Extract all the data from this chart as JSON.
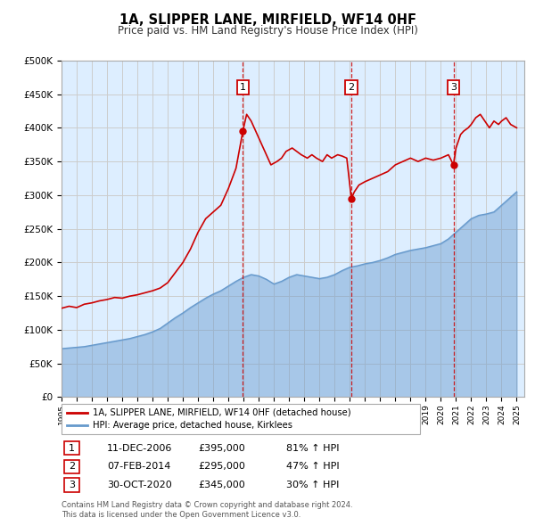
{
  "title": "1A, SLIPPER LANE, MIRFIELD, WF14 0HF",
  "subtitle": "Price paid vs. HM Land Registry's House Price Index (HPI)",
  "red_label": "1A, SLIPPER LANE, MIRFIELD, WF14 0HF (detached house)",
  "blue_label": "HPI: Average price, detached house, Kirklees",
  "red_color": "#cc0000",
  "blue_color": "#6699cc",
  "fill_color": "#ddeeff",
  "background_color": "#ffffff",
  "grid_color": "#cccccc",
  "ylim": [
    0,
    500000
  ],
  "yticks": [
    0,
    50000,
    100000,
    150000,
    200000,
    250000,
    300000,
    350000,
    400000,
    450000,
    500000
  ],
  "xlim_start": 1995.0,
  "xlim_end": 2025.5,
  "transactions": [
    {
      "num": 1,
      "date": "11-DEC-2006",
      "price": 395000,
      "pct": "81%",
      "year": 2006.95
    },
    {
      "num": 2,
      "date": "07-FEB-2014",
      "price": 295000,
      "pct": "47%",
      "year": 2014.1
    },
    {
      "num": 3,
      "date": "30-OCT-2020",
      "price": 345000,
      "pct": "30%",
      "year": 2020.83
    }
  ],
  "footnote": "Contains HM Land Registry data © Crown copyright and database right 2024.\nThis data is licensed under the Open Government Licence v3.0.",
  "red_data": [
    [
      1995.0,
      132000
    ],
    [
      1995.5,
      135000
    ],
    [
      1996.0,
      133000
    ],
    [
      1996.5,
      138000
    ],
    [
      1997.0,
      140000
    ],
    [
      1997.5,
      143000
    ],
    [
      1998.0,
      145000
    ],
    [
      1998.5,
      148000
    ],
    [
      1999.0,
      147000
    ],
    [
      1999.5,
      150000
    ],
    [
      2000.0,
      152000
    ],
    [
      2000.5,
      155000
    ],
    [
      2001.0,
      158000
    ],
    [
      2001.5,
      162000
    ],
    [
      2002.0,
      170000
    ],
    [
      2002.5,
      185000
    ],
    [
      2003.0,
      200000
    ],
    [
      2003.5,
      220000
    ],
    [
      2004.0,
      245000
    ],
    [
      2004.5,
      265000
    ],
    [
      2005.0,
      275000
    ],
    [
      2005.5,
      285000
    ],
    [
      2006.0,
      310000
    ],
    [
      2006.5,
      340000
    ],
    [
      2006.95,
      395000
    ],
    [
      2007.2,
      420000
    ],
    [
      2007.5,
      410000
    ],
    [
      2007.8,
      395000
    ],
    [
      2008.2,
      375000
    ],
    [
      2008.5,
      360000
    ],
    [
      2008.8,
      345000
    ],
    [
      2009.2,
      350000
    ],
    [
      2009.5,
      355000
    ],
    [
      2009.8,
      365000
    ],
    [
      2010.2,
      370000
    ],
    [
      2010.5,
      365000
    ],
    [
      2010.8,
      360000
    ],
    [
      2011.2,
      355000
    ],
    [
      2011.5,
      360000
    ],
    [
      2011.8,
      355000
    ],
    [
      2012.2,
      350000
    ],
    [
      2012.5,
      360000
    ],
    [
      2012.8,
      355000
    ],
    [
      2013.2,
      360000
    ],
    [
      2013.5,
      358000
    ],
    [
      2013.8,
      355000
    ],
    [
      2014.1,
      295000
    ],
    [
      2014.3,
      305000
    ],
    [
      2014.6,
      315000
    ],
    [
      2015.0,
      320000
    ],
    [
      2015.5,
      325000
    ],
    [
      2016.0,
      330000
    ],
    [
      2016.5,
      335000
    ],
    [
      2017.0,
      345000
    ],
    [
      2017.5,
      350000
    ],
    [
      2018.0,
      355000
    ],
    [
      2018.5,
      350000
    ],
    [
      2019.0,
      355000
    ],
    [
      2019.5,
      352000
    ],
    [
      2020.0,
      355000
    ],
    [
      2020.5,
      360000
    ],
    [
      2020.83,
      345000
    ],
    [
      2021.0,
      370000
    ],
    [
      2021.3,
      390000
    ],
    [
      2021.5,
      395000
    ],
    [
      2021.8,
      400000
    ],
    [
      2022.0,
      405000
    ],
    [
      2022.3,
      415000
    ],
    [
      2022.6,
      420000
    ],
    [
      2022.9,
      410000
    ],
    [
      2023.2,
      400000
    ],
    [
      2023.5,
      410000
    ],
    [
      2023.8,
      405000
    ],
    [
      2024.0,
      410000
    ],
    [
      2024.3,
      415000
    ],
    [
      2024.6,
      405000
    ],
    [
      2025.0,
      400000
    ]
  ],
  "blue_data": [
    [
      1995.0,
      72000
    ],
    [
      1995.5,
      73000
    ],
    [
      1996.0,
      74000
    ],
    [
      1996.5,
      75000
    ],
    [
      1997.0,
      77000
    ],
    [
      1997.5,
      79000
    ],
    [
      1998.0,
      81000
    ],
    [
      1998.5,
      83000
    ],
    [
      1999.0,
      85000
    ],
    [
      1999.5,
      87000
    ],
    [
      2000.0,
      90000
    ],
    [
      2000.5,
      93000
    ],
    [
      2001.0,
      97000
    ],
    [
      2001.5,
      102000
    ],
    [
      2002.0,
      110000
    ],
    [
      2002.5,
      118000
    ],
    [
      2003.0,
      125000
    ],
    [
      2003.5,
      133000
    ],
    [
      2004.0,
      140000
    ],
    [
      2004.5,
      147000
    ],
    [
      2005.0,
      153000
    ],
    [
      2005.5,
      158000
    ],
    [
      2006.0,
      165000
    ],
    [
      2006.5,
      172000
    ],
    [
      2007.0,
      178000
    ],
    [
      2007.5,
      182000
    ],
    [
      2008.0,
      180000
    ],
    [
      2008.5,
      175000
    ],
    [
      2009.0,
      168000
    ],
    [
      2009.5,
      172000
    ],
    [
      2010.0,
      178000
    ],
    [
      2010.5,
      182000
    ],
    [
      2011.0,
      180000
    ],
    [
      2011.5,
      178000
    ],
    [
      2012.0,
      176000
    ],
    [
      2012.5,
      178000
    ],
    [
      2013.0,
      182000
    ],
    [
      2013.5,
      188000
    ],
    [
      2014.0,
      193000
    ],
    [
      2014.5,
      195000
    ],
    [
      2015.0,
      198000
    ],
    [
      2015.5,
      200000
    ],
    [
      2016.0,
      203000
    ],
    [
      2016.5,
      207000
    ],
    [
      2017.0,
      212000
    ],
    [
      2017.5,
      215000
    ],
    [
      2018.0,
      218000
    ],
    [
      2018.5,
      220000
    ],
    [
      2019.0,
      222000
    ],
    [
      2019.5,
      225000
    ],
    [
      2020.0,
      228000
    ],
    [
      2020.5,
      235000
    ],
    [
      2021.0,
      245000
    ],
    [
      2021.5,
      255000
    ],
    [
      2022.0,
      265000
    ],
    [
      2022.5,
      270000
    ],
    [
      2023.0,
      272000
    ],
    [
      2023.5,
      275000
    ],
    [
      2024.0,
      285000
    ],
    [
      2024.5,
      295000
    ],
    [
      2025.0,
      305000
    ]
  ]
}
